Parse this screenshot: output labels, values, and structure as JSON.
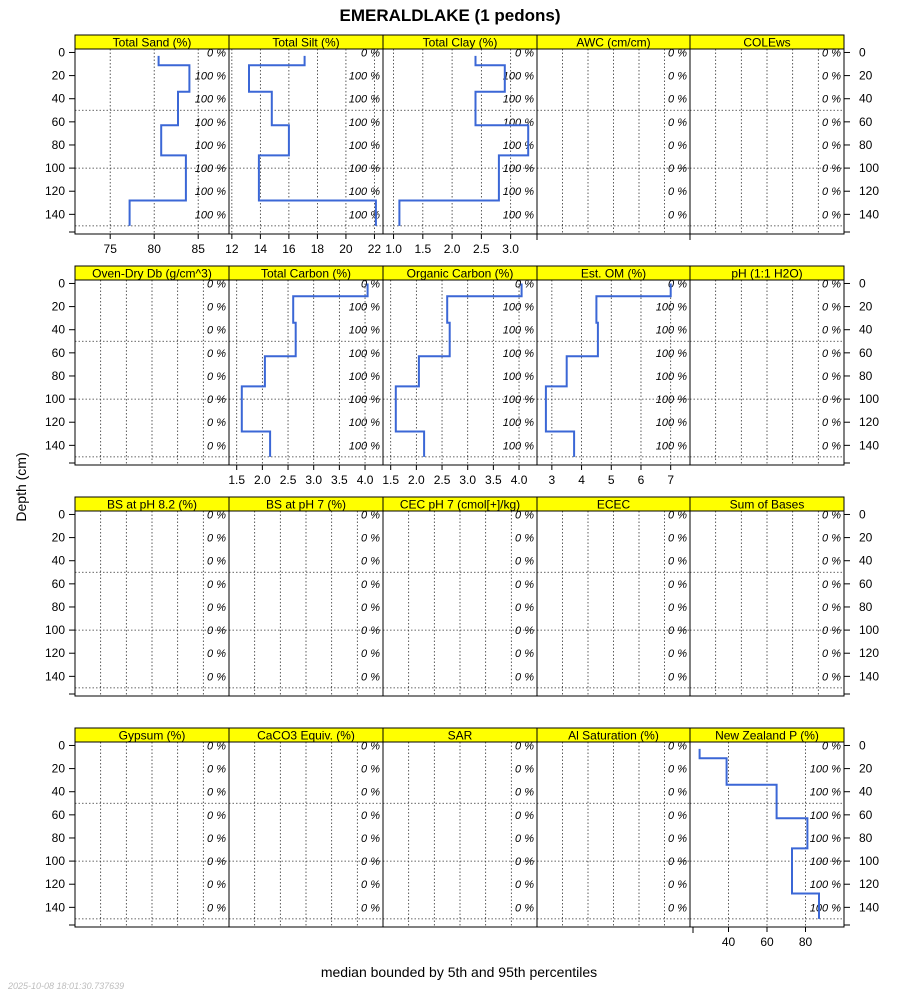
{
  "chart_data": {
    "type": "line",
    "title": "EMERALDLAKE (1 pedons)",
    "ylabel": "Depth (cm)",
    "xlabel": "median bounded by 5th and 95th percentiles",
    "timestamp": "2025-10-08 18:01:30.737639",
    "ylim": [
      157,
      -3
    ],
    "depth_ticks": [
      0,
      20,
      40,
      60,
      80,
      100,
      120,
      140
    ],
    "pct_depths": [
      0,
      20,
      40,
      60,
      80,
      100,
      120,
      140
    ],
    "line_color": "#3b67d6",
    "strip_color": "#ffff00",
    "panels": [
      {
        "name": "Total Sand (%)",
        "xlim": [
          71,
          88.5
        ],
        "xticks": [
          75,
          80,
          85
        ],
        "pct": [
          "0 %",
          "100 %",
          "100 %",
          "100 %",
          "100 %",
          "100 %",
          "100 %",
          "100 %"
        ],
        "x": [
          80.5,
          80.5,
          84,
          84,
          82.7,
          82.7,
          80.8,
          80.8,
          83.6,
          83.6,
          77.2,
          77.2
        ],
        "y": [
          3,
          11,
          11,
          34,
          34,
          63,
          63,
          89,
          89,
          128,
          128,
          150
        ]
      },
      {
        "name": "Total Silt (%)",
        "xlim": [
          11.8,
          22.6
        ],
        "xticks": [
          12,
          14,
          16,
          18,
          20,
          22
        ],
        "pct": [
          "0 %",
          "100 %",
          "100 %",
          "100 %",
          "100 %",
          "100 %",
          "100 %",
          "100 %"
        ],
        "x": [
          17.1,
          17.1,
          13.2,
          13.2,
          14.8,
          14.8,
          16,
          16,
          13.9,
          13.9,
          22.1,
          22.1
        ],
        "y": [
          3,
          11,
          11,
          34,
          34,
          63,
          63,
          89,
          89,
          128,
          128,
          150
        ]
      },
      {
        "name": "Total Clay (%)",
        "xlim": [
          0.82,
          3.45
        ],
        "xticks": [
          1.0,
          1.5,
          2.0,
          2.5,
          3.0
        ],
        "pct": [
          "0 %",
          "100 %",
          "100 %",
          "100 %",
          "100 %",
          "100 %",
          "100 %",
          "100 %"
        ],
        "x": [
          2.4,
          2.4,
          2.9,
          2.9,
          2.4,
          2.4,
          3.3,
          3.3,
          2.8,
          2.8,
          1.1,
          1.1
        ],
        "y": [
          3,
          11,
          11,
          34,
          34,
          63,
          63,
          89,
          89,
          128,
          128,
          150
        ]
      },
      {
        "name": "AWC (cm/cm)",
        "xlim": [
          0,
          1
        ],
        "xticks": [],
        "pct": [
          "0 %",
          "0 %",
          "0 %",
          "0 %",
          "0 %",
          "0 %",
          "0 %",
          "0 %"
        ],
        "x": [],
        "y": []
      },
      {
        "name": "COLEws",
        "xlim": [
          0,
          1
        ],
        "xticks": [],
        "pct": [
          "0 %",
          "0 %",
          "0 %",
          "0 %",
          "0 %",
          "0 %",
          "0 %",
          "0 %"
        ],
        "x": [],
        "y": []
      },
      {
        "name": "Oven-Dry Db (g/cm^3)",
        "xlim": [
          0,
          1
        ],
        "xticks": [],
        "pct": [
          "0 %",
          "0 %",
          "0 %",
          "0 %",
          "0 %",
          "0 %",
          "0 %",
          "0 %"
        ],
        "x": [],
        "y": []
      },
      {
        "name": "Total Carbon (%)",
        "xlim": [
          1.35,
          4.35
        ],
        "xticks": [
          1.5,
          2.0,
          2.5,
          3.0,
          3.5,
          4.0
        ],
        "pct": [
          "0 %",
          "100 %",
          "100 %",
          "100 %",
          "100 %",
          "100 %",
          "100 %",
          "100 %"
        ],
        "x": [
          4.05,
          4.05,
          2.6,
          2.6,
          2.65,
          2.65,
          2.05,
          2.05,
          1.6,
          1.6,
          2.15,
          2.15
        ],
        "y": [
          0,
          11,
          11,
          34,
          34,
          63,
          63,
          89,
          89,
          128,
          128,
          150
        ]
      },
      {
        "name": "Organic Carbon (%)",
        "xlim": [
          1.35,
          4.35
        ],
        "xticks": [
          1.5,
          2.0,
          2.5,
          3.0,
          3.5,
          4.0
        ],
        "pct": [
          "0 %",
          "100 %",
          "100 %",
          "100 %",
          "100 %",
          "100 %",
          "100 %",
          "100 %"
        ],
        "x": [
          4.05,
          4.05,
          2.6,
          2.6,
          2.65,
          2.65,
          2.05,
          2.05,
          1.6,
          1.6,
          2.15,
          2.15
        ],
        "y": [
          0,
          11,
          11,
          34,
          34,
          63,
          63,
          89,
          89,
          128,
          128,
          150
        ]
      },
      {
        "name": "Est. OM (%)",
        "xlim": [
          2.5,
          7.65
        ],
        "xticks": [
          3,
          4,
          5,
          6,
          7
        ],
        "pct": [
          "0 %",
          "100 %",
          "100 %",
          "100 %",
          "100 %",
          "100 %",
          "100 %",
          "100 %"
        ],
        "x": [
          7.0,
          7.0,
          4.5,
          4.5,
          4.55,
          4.55,
          3.5,
          3.5,
          2.8,
          2.8,
          3.75,
          3.75
        ],
        "y": [
          0,
          11,
          11,
          34,
          34,
          63,
          63,
          89,
          89,
          128,
          128,
          150
        ]
      },
      {
        "name": "pH (1:1 H2O)",
        "xlim": [
          0,
          1
        ],
        "xticks": [],
        "pct": [
          "0 %",
          "0 %",
          "0 %",
          "0 %",
          "0 %",
          "0 %",
          "0 %",
          "0 %"
        ],
        "x": [],
        "y": []
      },
      {
        "name": "BS at pH 8.2 (%)",
        "xlim": [
          0,
          1
        ],
        "xticks": [],
        "pct": [
          "0 %",
          "0 %",
          "0 %",
          "0 %",
          "0 %",
          "0 %",
          "0 %",
          "0 %"
        ],
        "x": [],
        "y": []
      },
      {
        "name": "BS at pH 7 (%)",
        "xlim": [
          0,
          1
        ],
        "xticks": [],
        "pct": [
          "0 %",
          "0 %",
          "0 %",
          "0 %",
          "0 %",
          "0 %",
          "0 %",
          "0 %"
        ],
        "x": [],
        "y": []
      },
      {
        "name": "CEC pH 7 (cmol[+]/kg)",
        "xlim": [
          0,
          1
        ],
        "xticks": [],
        "pct": [
          "0 %",
          "0 %",
          "0 %",
          "0 %",
          "0 %",
          "0 %",
          "0 %",
          "0 %"
        ],
        "x": [],
        "y": []
      },
      {
        "name": "ECEC",
        "xlim": [
          0,
          1
        ],
        "xticks": [],
        "pct": [
          "0 %",
          "0 %",
          "0 %",
          "0 %",
          "0 %",
          "0 %",
          "0 %",
          "0 %"
        ],
        "x": [],
        "y": []
      },
      {
        "name": "Sum of Bases",
        "xlim": [
          0,
          1
        ],
        "xticks": [],
        "pct": [
          "0 %",
          "0 %",
          "0 %",
          "0 %",
          "0 %",
          "0 %",
          "0 %",
          "0 %"
        ],
        "x": [],
        "y": []
      },
      {
        "name": "Gypsum (%)",
        "xlim": [
          0,
          1
        ],
        "xticks": [],
        "pct": [
          "0 %",
          "0 %",
          "0 %",
          "0 %",
          "0 %",
          "0 %",
          "0 %",
          "0 %"
        ],
        "x": [],
        "y": []
      },
      {
        "name": "CaCO3 Equiv. (%)",
        "xlim": [
          0,
          1
        ],
        "xticks": [],
        "pct": [
          "0 %",
          "0 %",
          "0 %",
          "0 %",
          "0 %",
          "0 %",
          "0 %",
          "0 %"
        ],
        "x": [],
        "y": []
      },
      {
        "name": "SAR",
        "xlim": [
          0,
          1
        ],
        "xticks": [],
        "pct": [
          "0 %",
          "0 %",
          "0 %",
          "0 %",
          "0 %",
          "0 %",
          "0 %",
          "0 %"
        ],
        "x": [],
        "y": []
      },
      {
        "name": "Al Saturation (%)",
        "xlim": [
          0,
          1
        ],
        "xticks": [],
        "pct": [
          "0 %",
          "0 %",
          "0 %",
          "0 %",
          "0 %",
          "0 %",
          "0 %",
          "0 %"
        ],
        "x": [],
        "y": []
      },
      {
        "name": "New Zealand P (%)",
        "xlim": [
          20,
          100
        ],
        "xticks": [
          40,
          60,
          80
        ],
        "pct": [
          "0 %",
          "100 %",
          "100 %",
          "100 %",
          "100 %",
          "100 %",
          "100 %",
          "100 %"
        ],
        "x": [
          25,
          25,
          39,
          39,
          65,
          65,
          81,
          81,
          73,
          73,
          87,
          87
        ],
        "y": [
          3,
          11,
          11,
          34,
          34,
          63,
          63,
          89,
          89,
          128,
          128,
          150
        ]
      }
    ]
  }
}
